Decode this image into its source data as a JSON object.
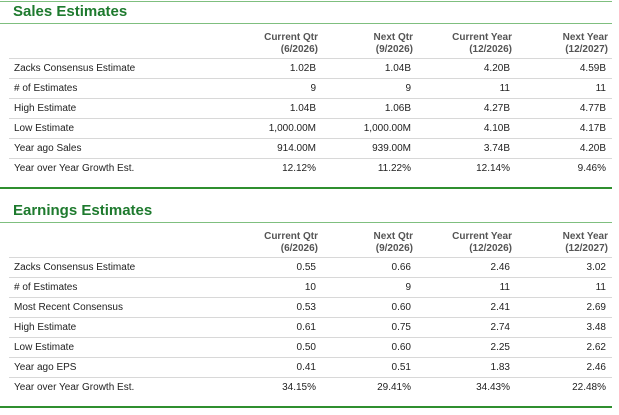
{
  "sales": {
    "title": "Sales Estimates",
    "columns": [
      {
        "line1": "Current Qtr",
        "line2": "(6/2026)"
      },
      {
        "line1": "Next Qtr",
        "line2": "(9/2026)"
      },
      {
        "line1": "Current Year",
        "line2": "(12/2026)"
      },
      {
        "line1": "Next Year",
        "line2": "(12/2027)"
      }
    ],
    "rows": [
      {
        "label": "Zacks Consensus Estimate",
        "values": [
          "1.02B",
          "1.04B",
          "4.20B",
          "4.59B"
        ]
      },
      {
        "label": "# of Estimates",
        "values": [
          "9",
          "9",
          "11",
          "11"
        ]
      },
      {
        "label": "High Estimate",
        "values": [
          "1.04B",
          "1.06B",
          "4.27B",
          "4.77B"
        ]
      },
      {
        "label": "Low Estimate",
        "values": [
          "1,000.00M",
          "1,000.00M",
          "4.10B",
          "4.17B"
        ]
      },
      {
        "label": "Year ago Sales",
        "values": [
          "914.00M",
          "939.00M",
          "3.74B",
          "4.20B"
        ]
      },
      {
        "label": "Year over Year Growth Est.",
        "values": [
          "12.12%",
          "11.22%",
          "12.14%",
          "9.46%"
        ]
      }
    ]
  },
  "earnings": {
    "title": "Earnings Estimates",
    "columns": [
      {
        "line1": "Current Qtr",
        "line2": "(6/2026)"
      },
      {
        "line1": "Next Qtr",
        "line2": "(9/2026)"
      },
      {
        "line1": "Current Year",
        "line2": "(12/2026)"
      },
      {
        "line1": "Next Year",
        "line2": "(12/2027)"
      }
    ],
    "rows": [
      {
        "label": "Zacks Consensus Estimate",
        "values": [
          "0.55",
          "0.66",
          "2.46",
          "3.02"
        ]
      },
      {
        "label": "# of Estimates",
        "values": [
          "10",
          "9",
          "11",
          "11"
        ]
      },
      {
        "label": "Most Recent Consensus",
        "values": [
          "0.53",
          "0.60",
          "2.41",
          "2.69"
        ]
      },
      {
        "label": "High Estimate",
        "values": [
          "0.61",
          "0.75",
          "2.74",
          "3.48"
        ]
      },
      {
        "label": "Low Estimate",
        "values": [
          "0.50",
          "0.60",
          "2.25",
          "2.62"
        ]
      },
      {
        "label": "Year ago EPS",
        "values": [
          "0.41",
          "0.51",
          "1.83",
          "2.46"
        ]
      },
      {
        "label": "Year over Year Growth Est.",
        "values": [
          "34.15%",
          "29.41%",
          "34.43%",
          "22.48%"
        ]
      }
    ]
  },
  "colors": {
    "title_green": "#1e7a2e",
    "rule_green": "#2f8f2f"
  }
}
